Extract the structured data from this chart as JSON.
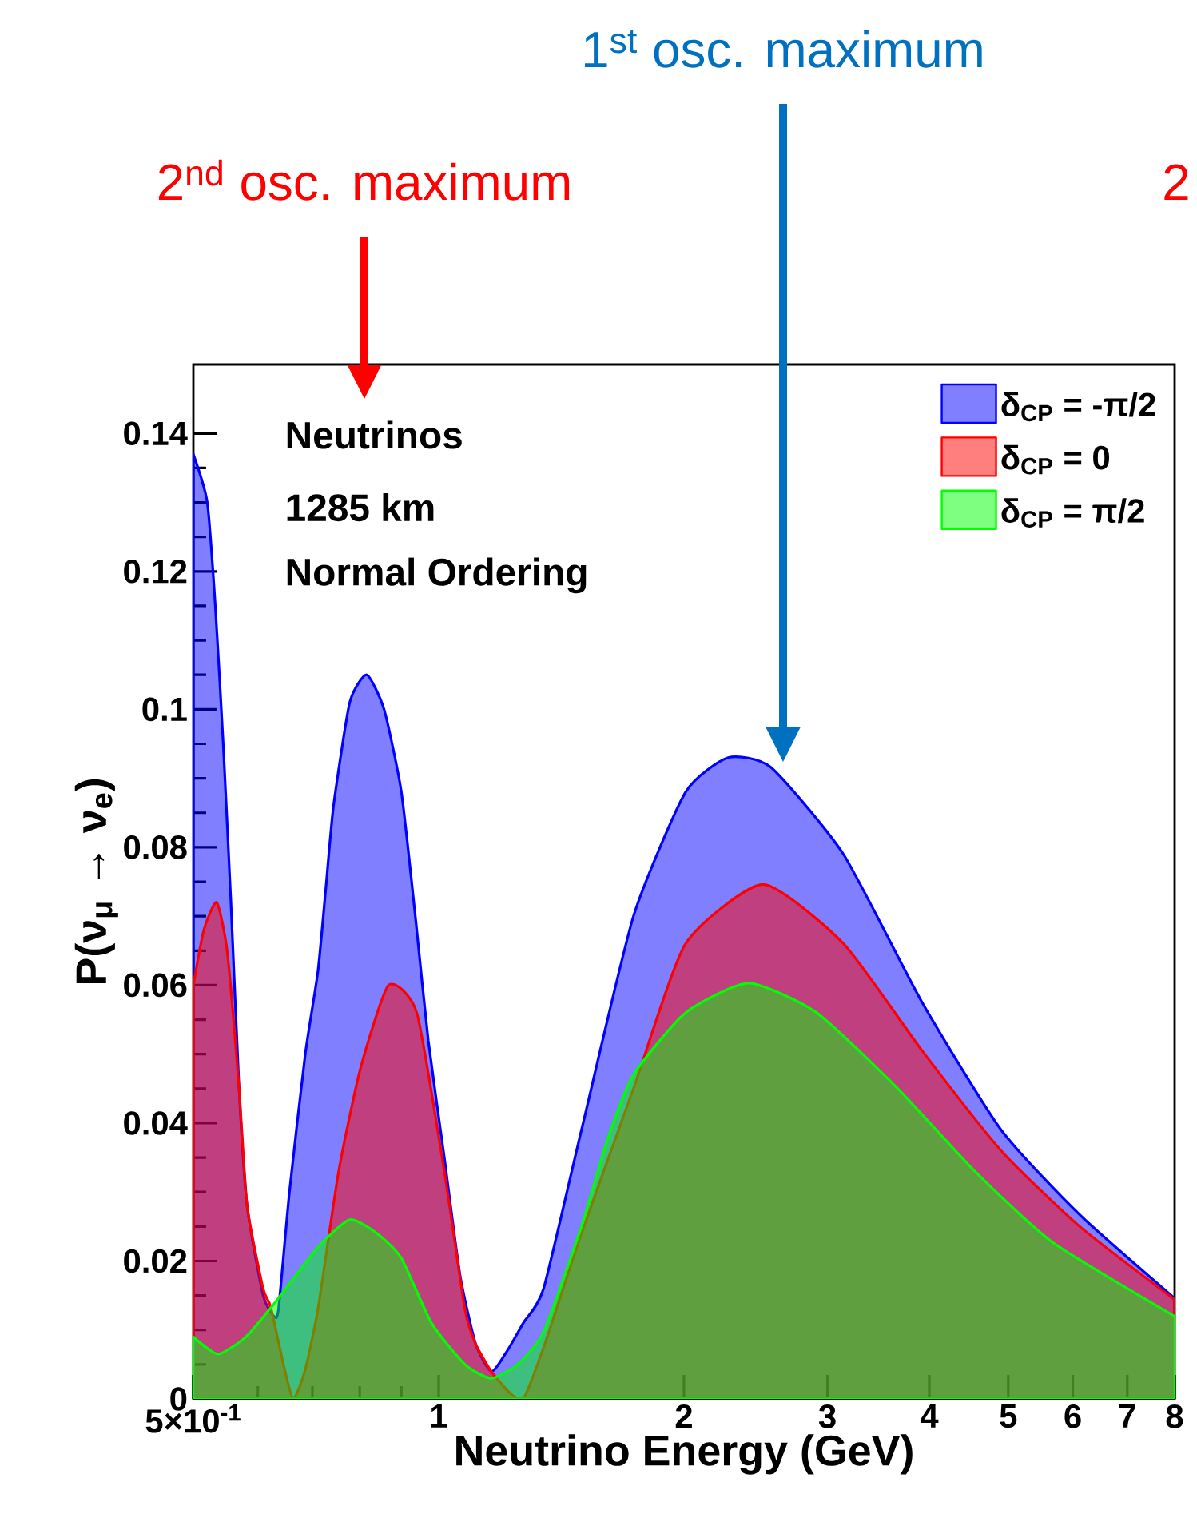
{
  "chart_data": {
    "type": "area",
    "log": "x",
    "xlabel": "Neutrino Energy (GeV)",
    "ylabel": "P(ν$_{μ}$ → ν$_{e}$)",
    "xlim": [
      0.5,
      8
    ],
    "ylim": [
      0,
      0.15
    ],
    "xticks": [
      {
        "value": 0.5,
        "label": "5×10$^{-1}$"
      },
      {
        "value": 0.6,
        "label": null
      },
      {
        "value": 0.7,
        "label": null
      },
      {
        "value": 0.8,
        "label": null
      },
      {
        "value": 0.9,
        "label": null
      },
      1,
      2,
      3,
      4,
      5,
      6,
      7,
      8
    ],
    "yticks": [
      0,
      0.02,
      0.04,
      0.06,
      0.08,
      0.1,
      0.12,
      0.14
    ],
    "legend": "top right",
    "annotations": [
      "Neutrinos",
      "1285 km",
      "Normal Ordering",
      "2$^{nd}$ osc. maximum",
      "1$^{st}$ osc. maximum",
      "2"
    ],
    "series": [
      {
        "name": "δ$_{CP}$ = -π/2",
        "color": "#0000ff",
        "x": [
          0.5,
          0.52,
          0.532,
          0.544,
          0.556,
          0.569,
          0.582,
          0.609,
          0.628,
          0.636,
          0.656,
          0.686,
          0.711,
          0.727,
          0.743,
          0.778,
          0.816,
          0.857,
          0.9,
          0.938,
          0.971,
          1.016,
          1.062,
          1.11,
          1.161,
          1.214,
          1.27,
          1.345,
          1.497,
          1.734,
          2.009,
          2.266,
          2.556,
          3.138,
          3.92,
          4.9,
          6.12,
          8
        ],
        "values": [
          0.137,
          0.13,
          0.115,
          0.095,
          0.072,
          0.045,
          0.028,
          0.015,
          0.012,
          0.013,
          0.03,
          0.05,
          0.062,
          0.074,
          0.086,
          0.101,
          0.105,
          0.1,
          0.088,
          0.069,
          0.052,
          0.035,
          0.018,
          0.008,
          0.004,
          0.007,
          0.011,
          0.016,
          0.039,
          0.07,
          0.088,
          0.093,
          0.0916,
          0.079,
          0.0575,
          0.039,
          0.0267,
          0.0146
        ]
      },
      {
        "name": "δ$_{CP}$ = 0",
        "color": "#ff0000",
        "x": [
          0.5,
          0.515,
          0.534,
          0.55,
          0.569,
          0.582,
          0.609,
          0.622,
          0.645,
          0.663,
          0.685,
          0.711,
          0.754,
          0.802,
          0.868,
          0.94,
          1.016,
          1.077,
          1.11,
          1.16,
          1.22,
          1.27,
          1.35,
          1.497,
          1.734,
          2.009,
          2.5,
          3.14,
          3.92,
          4.9,
          6.12,
          8
        ],
        "values": [
          0.06,
          0.068,
          0.072,
          0.065,
          0.045,
          0.028,
          0.016,
          0.0134,
          0.005,
          0.0,
          0.004,
          0.013,
          0.033,
          0.048,
          0.06,
          0.056,
          0.033,
          0.013,
          0.008,
          0.004,
          0.001,
          0.0,
          0.008,
          0.024,
          0.045,
          0.066,
          0.0746,
          0.066,
          0.0505,
          0.036,
          0.025,
          0.0144
        ]
      },
      {
        "name": "δ$_{CP}$ = π/2",
        "color": "#00ff00",
        "x": [
          0.5,
          0.536,
          0.58,
          0.63,
          0.711,
          0.778,
          0.84,
          0.9,
          0.98,
          1.077,
          1.16,
          1.25,
          1.345,
          1.497,
          1.61,
          1.734,
          2.009,
          2.4,
          2.91,
          3.66,
          4.55,
          5.67,
          8
        ],
        "values": [
          0.009,
          0.0065,
          0.009,
          0.014,
          0.022,
          0.026,
          0.024,
          0.0204,
          0.011,
          0.005,
          0.003,
          0.005,
          0.0097,
          0.025,
          0.0375,
          0.047,
          0.056,
          0.0603,
          0.056,
          0.045,
          0.033,
          0.0227,
          0.012
        ]
      }
    ]
  }
}
